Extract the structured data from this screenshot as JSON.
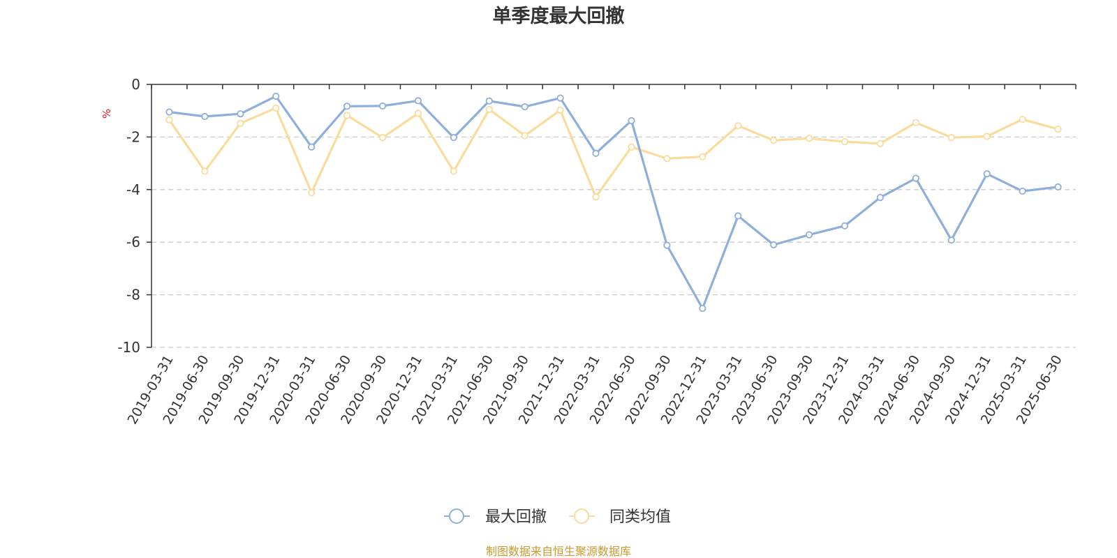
{
  "chart_data": {
    "type": "line",
    "title": "单季度最大回撤",
    "ylabel": "%",
    "ylim": [
      -10,
      0
    ],
    "yticks": [
      0,
      -2,
      -4,
      -6,
      -8,
      -10
    ],
    "grid": "horizontal dashed",
    "legend_position": "bottom-center",
    "categories": [
      "2019-03-31",
      "2019-06-30",
      "2019-09-30",
      "2019-12-31",
      "2020-03-31",
      "2020-06-30",
      "2020-09-30",
      "2020-12-31",
      "2021-03-31",
      "2021-06-30",
      "2021-09-30",
      "2021-12-31",
      "2022-03-31",
      "2022-06-30",
      "2022-09-30",
      "2022-12-31",
      "2023-03-31",
      "2023-06-30",
      "2023-09-30",
      "2023-12-31",
      "2024-03-31",
      "2024-06-30",
      "2024-09-30",
      "2024-12-31",
      "2025-03-31",
      "2025-06-30"
    ],
    "series": [
      {
        "name": "最大回撤",
        "color": "#8eaedb",
        "values": [
          -1.05,
          -1.22,
          -1.12,
          -0.45,
          -2.38,
          -0.83,
          -0.82,
          -0.62,
          -2.02,
          -0.63,
          -0.85,
          -0.52,
          -2.62,
          -1.38,
          -6.12,
          -8.52,
          -5.0,
          -6.1,
          -5.72,
          -5.38,
          -4.3,
          -3.57,
          -5.92,
          -3.4,
          -4.06,
          -3.9
        ]
      },
      {
        "name": "同类均值",
        "color": "#fbdb9b",
        "values": [
          -1.35,
          -3.3,
          -1.48,
          -0.9,
          -4.12,
          -1.18,
          -2.02,
          -1.1,
          -3.3,
          -0.95,
          -1.95,
          -0.98,
          -4.28,
          -2.38,
          -2.82,
          -2.75,
          -1.57,
          -2.13,
          -2.05,
          -2.18,
          -2.25,
          -1.45,
          -2.02,
          -1.98,
          -1.33,
          -1.7
        ]
      }
    ]
  },
  "source_text": "制图数据来自恒生聚源数据库",
  "colors": {
    "axis": "#333333",
    "grid": "#cccccc",
    "unit": "#e8141b",
    "source": "#c89a2e"
  }
}
